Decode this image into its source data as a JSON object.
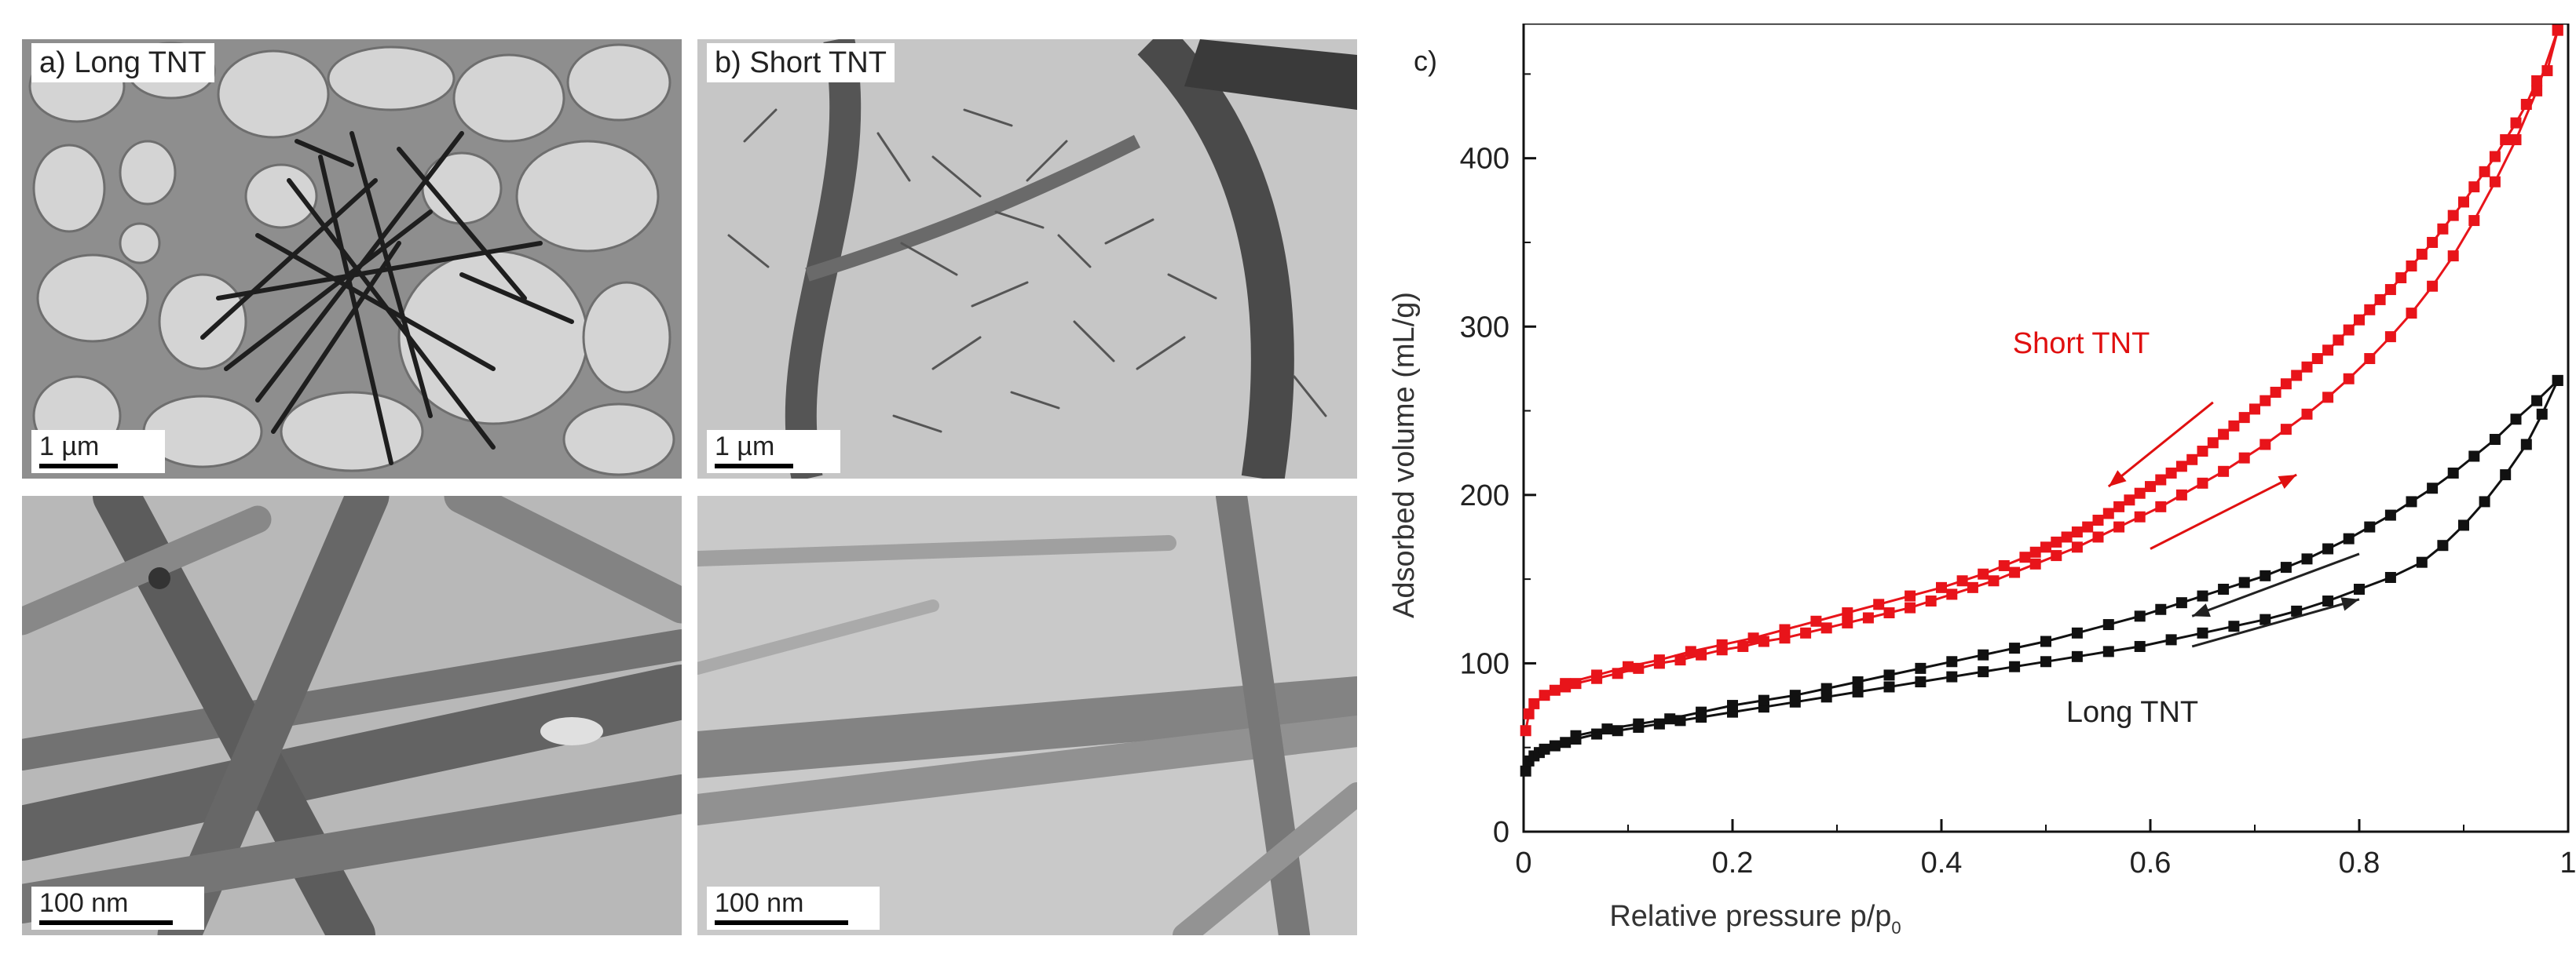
{
  "panels": {
    "a": {
      "label": "a) Long TNT",
      "scale_top": "1 µm",
      "scale_bottom": "100 nm"
    },
    "b": {
      "label": "b) Short TNT",
      "scale_top": "1 µm",
      "scale_bottom": "100 nm"
    },
    "c": {
      "label": "c)"
    }
  },
  "chart_data": {
    "type": "scatter",
    "xlabel": "Relative pressure p/p",
    "xlabel_subscript": "0",
    "ylabel": "Adsorbed volume (mL/g)",
    "xlim": [
      0,
      1
    ],
    "ylim": [
      0,
      480
    ],
    "xticks": [
      "0",
      "0.2",
      "0.4",
      "0.6",
      "0.8",
      "1"
    ],
    "xtick_values": [
      0,
      0.2,
      0.4,
      0.6,
      0.8,
      1
    ],
    "yticks": [
      "0",
      "100",
      "200",
      "300",
      "400"
    ],
    "ytick_values": [
      0,
      100,
      200,
      300,
      400
    ],
    "grid": false,
    "annotations": [
      {
        "text": "Short TNT",
        "color": "#e01010"
      },
      {
        "text": "Long TNT",
        "color": "#222222"
      }
    ],
    "series": [
      {
        "name": "Short TNT",
        "branch": "adsorption",
        "color": "#e8141a",
        "x": [
          0.002,
          0.005,
          0.01,
          0.02,
          0.03,
          0.04,
          0.05,
          0.07,
          0.09,
          0.11,
          0.13,
          0.15,
          0.17,
          0.19,
          0.21,
          0.23,
          0.25,
          0.27,
          0.29,
          0.31,
          0.33,
          0.35,
          0.37,
          0.39,
          0.41,
          0.43,
          0.45,
          0.47,
          0.49,
          0.51,
          0.53,
          0.55,
          0.57,
          0.59,
          0.61,
          0.63,
          0.65,
          0.67,
          0.69,
          0.71,
          0.73,
          0.75,
          0.77,
          0.79,
          0.81,
          0.83,
          0.85,
          0.87,
          0.89,
          0.91,
          0.93,
          0.95,
          0.97,
          0.99
        ],
        "y": [
          60,
          70,
          76,
          81,
          84,
          86,
          88,
          91,
          94,
          97,
          100,
          102,
          105,
          108,
          110,
          113,
          115,
          118,
          121,
          124,
          127,
          130,
          133,
          137,
          141,
          145,
          149,
          154,
          159,
          164,
          169,
          175,
          181,
          187,
          193,
          200,
          207,
          214,
          222,
          230,
          239,
          248,
          258,
          269,
          281,
          294,
          308,
          324,
          342,
          363,
          386,
          411,
          440,
          476
        ]
      },
      {
        "name": "Short TNT",
        "branch": "desorption",
        "color": "#e8141a",
        "x": [
          0.99,
          0.98,
          0.97,
          0.96,
          0.95,
          0.94,
          0.93,
          0.92,
          0.91,
          0.9,
          0.89,
          0.88,
          0.87,
          0.86,
          0.85,
          0.84,
          0.83,
          0.82,
          0.81,
          0.8,
          0.79,
          0.78,
          0.77,
          0.76,
          0.75,
          0.74,
          0.73,
          0.72,
          0.71,
          0.7,
          0.69,
          0.68,
          0.67,
          0.66,
          0.65,
          0.64,
          0.63,
          0.62,
          0.61,
          0.6,
          0.59,
          0.58,
          0.57,
          0.56,
          0.55,
          0.54,
          0.53,
          0.52,
          0.51,
          0.5,
          0.49,
          0.48,
          0.46,
          0.44,
          0.42,
          0.4,
          0.37,
          0.34,
          0.31,
          0.28,
          0.25,
          0.22,
          0.19,
          0.16,
          0.13,
          0.1,
          0.07,
          0.04
        ],
        "y": [
          476,
          452,
          446,
          432,
          421,
          411,
          401,
          392,
          383,
          374,
          366,
          358,
          350,
          343,
          336,
          329,
          322,
          316,
          310,
          304,
          298,
          292,
          286,
          281,
          276,
          271,
          266,
          261,
          256,
          251,
          246,
          241,
          236,
          231,
          226,
          221,
          217,
          213,
          209,
          205,
          201,
          197,
          193,
          189,
          185,
          181,
          178,
          175,
          172,
          169,
          166,
          163,
          158,
          153,
          149,
          145,
          140,
          135,
          130,
          125,
          120,
          115,
          111,
          107,
          102,
          98,
          93,
          88
        ]
      },
      {
        "name": "Long TNT",
        "branch": "adsorption",
        "color": "#111111",
        "x": [
          0.002,
          0.005,
          0.01,
          0.015,
          0.02,
          0.03,
          0.04,
          0.05,
          0.07,
          0.09,
          0.11,
          0.13,
          0.15,
          0.17,
          0.2,
          0.23,
          0.26,
          0.29,
          0.32,
          0.35,
          0.38,
          0.41,
          0.44,
          0.47,
          0.5,
          0.53,
          0.56,
          0.59,
          0.62,
          0.65,
          0.68,
          0.71,
          0.74,
          0.77,
          0.8,
          0.83,
          0.86,
          0.88,
          0.9,
          0.92,
          0.94,
          0.96,
          0.975,
          0.99
        ],
        "y": [
          36,
          42,
          45,
          47,
          49,
          51,
          53,
          55,
          58,
          60,
          62,
          64,
          66,
          68,
          71,
          74,
          77,
          80,
          83,
          86,
          89,
          92,
          95,
          98,
          101,
          104,
          107,
          110,
          114,
          118,
          122,
          126,
          131,
          137,
          144,
          151,
          160,
          170,
          182,
          196,
          212,
          230,
          248,
          268
        ]
      },
      {
        "name": "Long TNT",
        "branch": "desorption",
        "color": "#111111",
        "x": [
          0.99,
          0.97,
          0.95,
          0.93,
          0.91,
          0.89,
          0.87,
          0.85,
          0.83,
          0.81,
          0.79,
          0.77,
          0.75,
          0.73,
          0.71,
          0.69,
          0.67,
          0.65,
          0.63,
          0.61,
          0.59,
          0.56,
          0.53,
          0.5,
          0.47,
          0.44,
          0.41,
          0.38,
          0.35,
          0.32,
          0.29,
          0.26,
          0.23,
          0.2,
          0.17,
          0.14,
          0.11,
          0.08,
          0.05
        ],
        "y": [
          268,
          256,
          245,
          233,
          223,
          213,
          204,
          196,
          188,
          181,
          174,
          168,
          162,
          157,
          152,
          148,
          144,
          140,
          136,
          132,
          128,
          123,
          118,
          113,
          109,
          105,
          101,
          97,
          93,
          89,
          85,
          81,
          78,
          75,
          71,
          67,
          64,
          61,
          57
        ]
      }
    ]
  }
}
